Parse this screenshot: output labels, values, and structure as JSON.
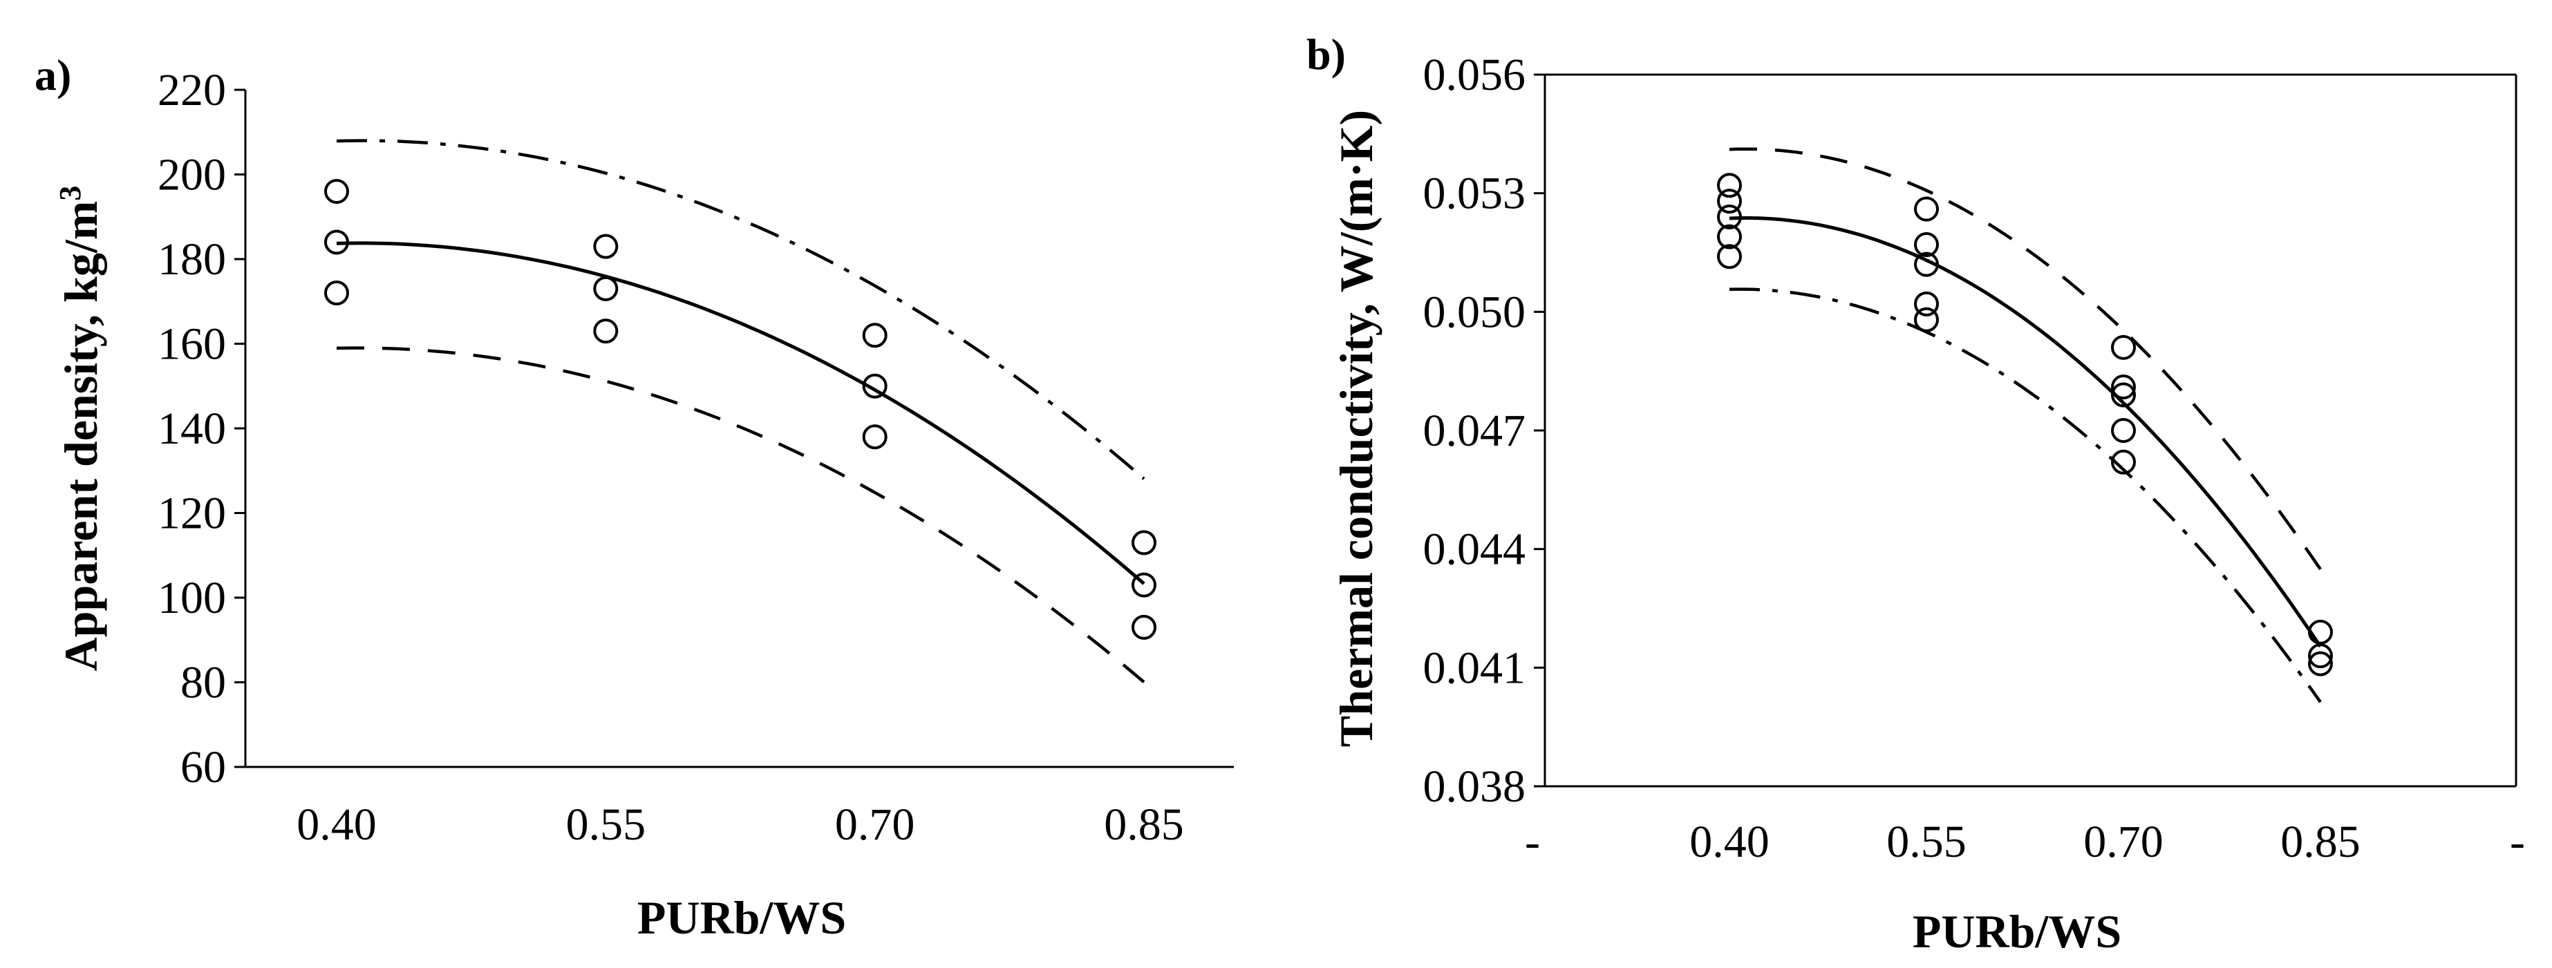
{
  "figure": {
    "panels": [
      {
        "label": "a)",
        "xlabel": "PURb/WS",
        "ylabel": "Apparent density, kg/m",
        "ylabel_sup": "3"
      },
      {
        "label": "b)",
        "xlabel": "PURb/WS",
        "ylabel": "Thermal conductivity, W/(m·K)"
      }
    ]
  },
  "chart_data": [
    {
      "type": "scatter",
      "panel_label": "a)",
      "xlabel": "PURb/WS",
      "ylabel": "Apparent density, kg/m3",
      "x_categories": [
        "0.40",
        "0.55",
        "0.70",
        "0.85"
      ],
      "x_values": [
        0.4,
        0.55,
        0.7,
        0.85
      ],
      "ylim": [
        60,
        220
      ],
      "yticks": [
        "60",
        "80",
        "100",
        "120",
        "140",
        "160",
        "180",
        "200",
        "220"
      ],
      "grid": false,
      "legend": "none",
      "series": [
        {
          "style": "markers",
          "points": [
            [
              0.4,
              196
            ],
            [
              0.4,
              184
            ],
            [
              0.4,
              172
            ],
            [
              0.55,
              183
            ],
            [
              0.55,
              173
            ],
            [
              0.55,
              163
            ],
            [
              0.7,
              162
            ],
            [
              0.7,
              150
            ],
            [
              0.7,
              138
            ],
            [
              0.85,
              113
            ],
            [
              0.85,
              103
            ],
            [
              0.85,
              93
            ]
          ]
        },
        {
          "style": "solid",
          "points": [
            [
              0.4,
              184
            ],
            [
              0.55,
              175
            ],
            [
              0.7,
              150
            ],
            [
              0.85,
              103
            ]
          ]
        },
        {
          "style": "dash-dot",
          "points": [
            [
              0.4,
              208
            ],
            [
              0.55,
              200
            ],
            [
              0.7,
              174
            ],
            [
              0.85,
              128
            ]
          ]
        },
        {
          "style": "dashed",
          "points": [
            [
              0.4,
              159
            ],
            [
              0.55,
              151
            ],
            [
              0.7,
              125
            ],
            [
              0.85,
              80
            ]
          ]
        }
      ]
    },
    {
      "type": "scatter",
      "panel_label": "b)",
      "xlabel": "PURb/WS",
      "ylabel": "Thermal conductivity, W/(m·K)",
      "x_categories": [
        "-",
        "0.40",
        "0.55",
        "0.70",
        "0.85",
        "-"
      ],
      "x_values": [
        0.25,
        0.4,
        0.55,
        0.7,
        0.85,
        1.0
      ],
      "xlim": [
        0.25,
        1.0
      ],
      "ylim": [
        0.038,
        0.056
      ],
      "yticks": [
        "0.038",
        "0.041",
        "0.044",
        "0.047",
        "0.050",
        "0.053",
        "0.056"
      ],
      "grid": false,
      "legend": "none",
      "series": [
        {
          "style": "markers",
          "points": [
            [
              0.4,
              0.0532
            ],
            [
              0.4,
              0.0528
            ],
            [
              0.4,
              0.0524
            ],
            [
              0.4,
              0.0519
            ],
            [
              0.4,
              0.0514
            ],
            [
              0.55,
              0.0526
            ],
            [
              0.55,
              0.0517
            ],
            [
              0.55,
              0.0512
            ],
            [
              0.55,
              0.0502
            ],
            [
              0.55,
              0.0498
            ],
            [
              0.7,
              0.0491
            ],
            [
              0.7,
              0.0481
            ],
            [
              0.7,
              0.0479
            ],
            [
              0.7,
              0.047
            ],
            [
              0.7,
              0.0462
            ],
            [
              0.85,
              0.0419
            ],
            [
              0.85,
              0.0413
            ],
            [
              0.85,
              0.0411
            ]
          ]
        },
        {
          "style": "solid",
          "points": [
            [
              0.4,
              0.0524
            ],
            [
              0.55,
              0.0512
            ],
            [
              0.7,
              0.0478
            ],
            [
              0.85,
              0.0415
            ]
          ]
        },
        {
          "style": "dashed",
          "points": [
            [
              0.4,
              0.0541
            ],
            [
              0.55,
              0.0531
            ],
            [
              0.7,
              0.0495
            ],
            [
              0.85,
              0.0435
            ]
          ]
        },
        {
          "style": "dash-dot",
          "points": [
            [
              0.4,
              0.0506
            ],
            [
              0.55,
              0.0494
            ],
            [
              0.7,
              0.0461
            ],
            [
              0.85,
              0.0401
            ]
          ]
        }
      ]
    }
  ]
}
